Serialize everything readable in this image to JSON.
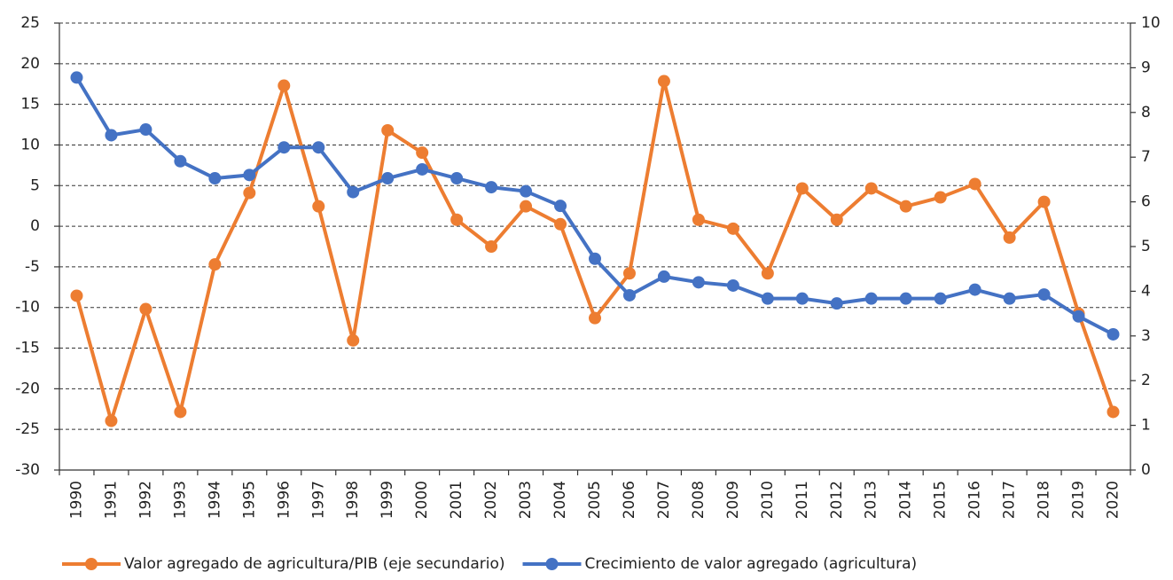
{
  "chart_data": {
    "type": "line",
    "categories": [
      "1990",
      "1991",
      "1992",
      "1993",
      "1994",
      "1995",
      "1996",
      "1997",
      "1998",
      "1999",
      "2000",
      "2001",
      "2002",
      "2003",
      "2004",
      "2005",
      "2006",
      "2007",
      "2008",
      "2009",
      "2010",
      "2011",
      "2012",
      "2013",
      "2014",
      "2015",
      "2016",
      "2017",
      "2018",
      "2019",
      "2020"
    ],
    "series": [
      {
        "name": "Valor agregado de agricultura/PIB (eje secundario)",
        "color": "#ed7d31",
        "axis": "y2",
        "values": [
          3.9,
          1.1,
          3.6,
          1.3,
          4.6,
          6.2,
          8.6,
          5.9,
          2.9,
          7.6,
          7.1,
          5.6,
          5.0,
          5.9,
          5.5,
          3.4,
          4.4,
          8.7,
          5.6,
          5.4,
          4.4,
          6.3,
          5.6,
          6.3,
          5.9,
          6.1,
          6.4,
          5.2,
          6.0,
          3.5,
          1.3
        ]
      },
      {
        "name": "Crecimiento de valor agregado (agricultura)",
        "color": "#4472c4",
        "values": [
          18.3,
          11.2,
          11.9,
          8.0,
          5.9,
          6.3,
          9.7,
          9.7,
          4.2,
          5.9,
          7.0,
          5.9,
          4.8,
          4.3,
          2.5,
          -4.0,
          -8.5,
          -6.2,
          -6.9,
          -7.3,
          -8.9,
          -8.9,
          -9.5,
          -8.9,
          -8.9,
          -8.9,
          -7.8,
          -8.9,
          -8.4,
          -11.1,
          -13.3
        ]
      }
    ],
    "ylim": [
      -30,
      25
    ],
    "yticks": [
      -30,
      -25,
      -20,
      -15,
      -10,
      -5,
      0,
      5,
      10,
      15,
      20,
      25
    ],
    "y2lim": [
      0,
      10
    ],
    "y2ticks": [
      0,
      1,
      2,
      3,
      4,
      5,
      6,
      7,
      8,
      9,
      10
    ],
    "grid": true,
    "legend": "bottom"
  }
}
